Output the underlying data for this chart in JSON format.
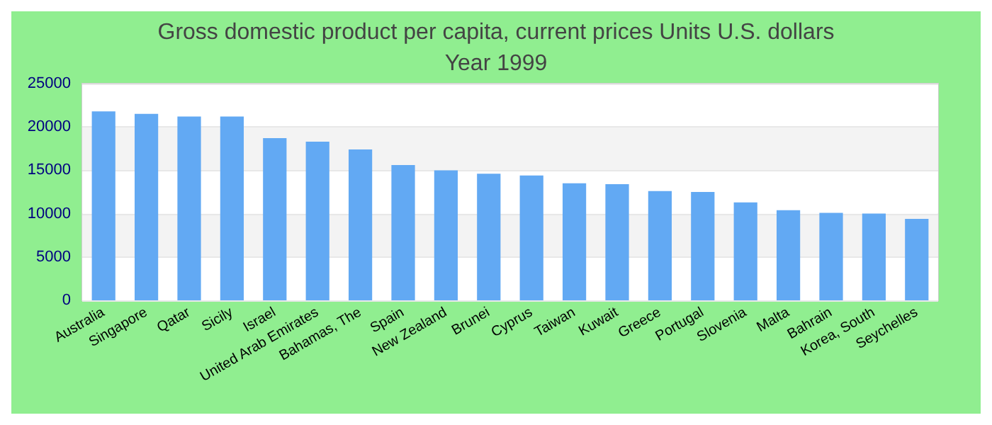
{
  "chart_data": {
    "type": "bar",
    "title": "Gross domestic product per capita, current prices Units U.S. dollars",
    "subtitle": "Year 1999",
    "categories": [
      "Australia",
      "Singapore",
      "Qatar",
      "Sicily",
      "Israel",
      "United Arab Emirates",
      "Bahamas, The",
      "Spain",
      "New Zealand",
      "Brunei",
      "Cyprus",
      "Taiwan",
      "Kuwait",
      "Greece",
      "Portugal",
      "Slovenia",
      "Malta",
      "Bahrain",
      "Korea, South",
      "Seychelles"
    ],
    "values": [
      21800,
      21500,
      21200,
      21200,
      18700,
      18300,
      17400,
      15600,
      15000,
      14600,
      14400,
      13500,
      13400,
      12600,
      12500,
      11300,
      10400,
      10100,
      10000,
      9400
    ],
    "color": "#62a9f3",
    "ylim": [
      0,
      25000
    ],
    "yticks": [
      0,
      5000,
      10000,
      15000,
      20000,
      25000
    ],
    "grid": "y"
  }
}
